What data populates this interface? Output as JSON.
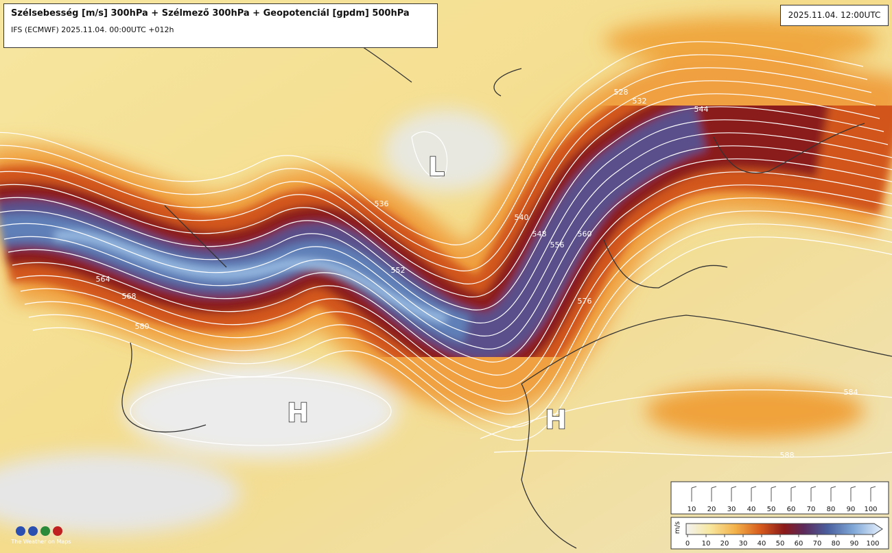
{
  "header": {
    "title": "Szélsebesség [m/s] 300hPa + Szélmező 300hPa + Geopotenciál [gpdm] 500hPa",
    "subtitle": "IFS (ECMWF) 2025.11.04. 00:00UTC +012h",
    "valid_time": "2025.11.04. 12:00UTC"
  },
  "map": {
    "pressure_centers": [
      "L",
      "H",
      "H"
    ],
    "contour_labels": [
      "564",
      "568",
      "580",
      "552",
      "536",
      "540",
      "548",
      "556",
      "560",
      "532",
      "544",
      "528",
      "576",
      "584",
      "588"
    ]
  },
  "legend": {
    "barb_scale": [
      10,
      20,
      30,
      40,
      50,
      60,
      70,
      80,
      90,
      100
    ],
    "colorbar": {
      "unit": "m/s",
      "ticks": [
        0,
        10,
        20,
        30,
        40,
        50,
        60,
        70,
        80,
        90,
        100
      ]
    }
  },
  "logo": {
    "caption": "The Weather on Maps"
  }
}
